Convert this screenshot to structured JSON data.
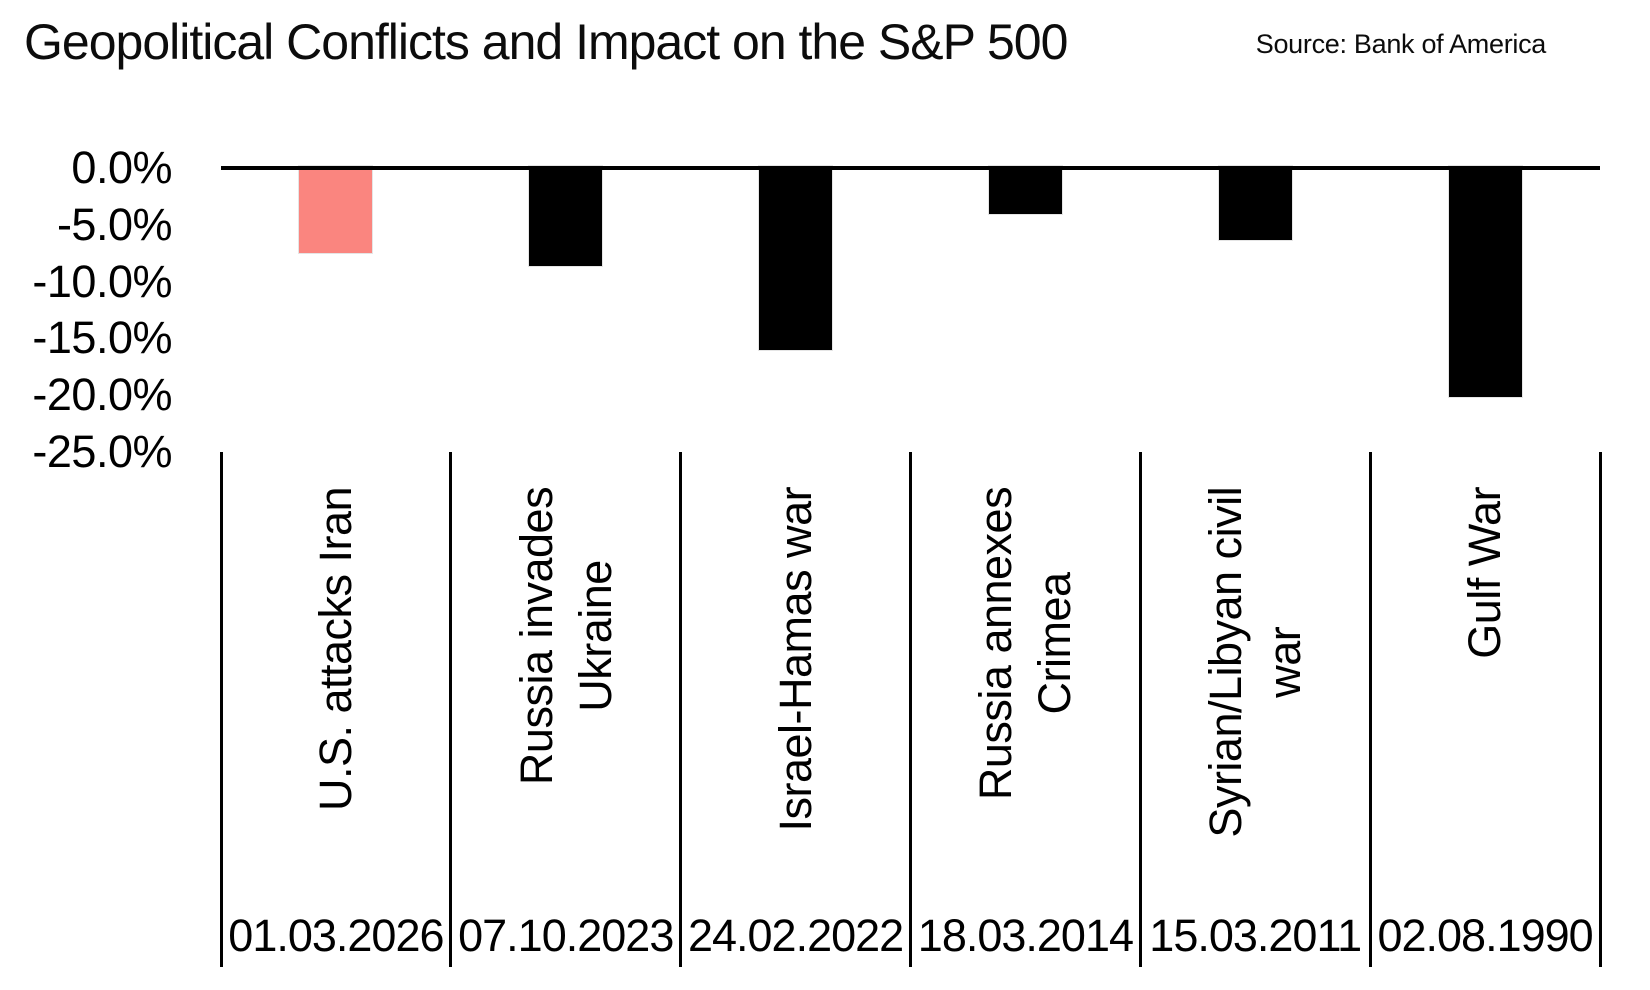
{
  "header": {
    "title": "Geopolitical Conflicts and Impact on the S&P 500",
    "source": "Source: Bank of America"
  },
  "chart_data": {
    "type": "bar",
    "title": "Geopolitical Conflicts and Impact on the S&P 500",
    "source": "Source: Bank of America",
    "categories": [
      "U.S. attacks Iran",
      "Russia invades\nUkraine",
      "Israel-Hamas war",
      "Russia annexes\nCrimea",
      "Syrian/Libyan civil\nwar",
      "Gulf War"
    ],
    "dates": [
      "01.03.2026",
      "07.10.2023",
      "24.02.2022",
      "18.03.2014",
      "15.03.2011",
      "02.08.1990"
    ],
    "values": [
      -7.5,
      -8.6,
      -16.0,
      -4.0,
      -6.3,
      -20.2
    ],
    "bar_colors": [
      "#FA857F",
      "#000000",
      "#000000",
      "#000000",
      "#000000",
      "#000000"
    ],
    "highlight_color": "#FA857F",
    "default_bar_color": "#000000",
    "yticks": {
      "labels": [
        "0.0%",
        "-5.0%",
        "-10.0%",
        "-15.0%",
        "-20.0%",
        "-25.0%"
      ],
      "values": [
        0,
        -5,
        -10,
        -15,
        -20,
        -25
      ]
    },
    "ylim": [
      0,
      -25
    ],
    "xlabel": "",
    "ylabel": "",
    "grid": false,
    "legend": false
  }
}
